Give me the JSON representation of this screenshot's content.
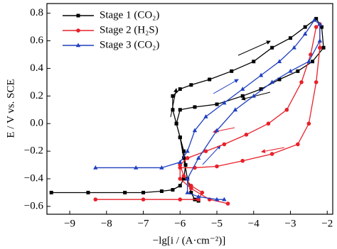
{
  "chart_data": {
    "type": "line",
    "xlabel": "−lg[i / (A·cm⁻²)]",
    "ylabel": "E / V vs. SCE",
    "xlim": [
      -9.62,
      -1.85
    ],
    "ylim": [
      -0.657,
      0.87
    ],
    "xticks": [
      {
        "value": -9,
        "label": "−9"
      },
      {
        "value": -8,
        "label": "−8"
      },
      {
        "value": -7,
        "label": "−7"
      },
      {
        "value": -6,
        "label": "−6"
      },
      {
        "value": -5,
        "label": "−5"
      },
      {
        "value": -4,
        "label": "−4"
      },
      {
        "value": -3,
        "label": "−3"
      },
      {
        "value": -2,
        "label": "−2"
      }
    ],
    "yticks": [
      {
        "value": -0.6,
        "label": "−0.6"
      },
      {
        "value": -0.4,
        "label": "−0.4"
      },
      {
        "value": -0.2,
        "label": "−0.2"
      },
      {
        "value": 0,
        "label": "0.0"
      },
      0.2,
      0.4,
      0.6,
      0.8
    ],
    "legend": "upper left",
    "series": [
      {
        "name": "Stage 1 (CO₂)",
        "color": "#000000",
        "marker": "square",
        "x": [
          -9.5,
          -8.5,
          -7.5,
          -7.0,
          -6.5,
          -6.2,
          -6.0,
          -5.9,
          -5.85,
          -5.9,
          -6.0,
          -6.1,
          -6.2,
          -6.2,
          -6.0,
          -5.7,
          -5.2,
          -4.6,
          -4.0,
          -3.5,
          -3.0,
          -2.6,
          -2.3,
          -2.15,
          -2.1,
          -2.4,
          -2.8,
          -3.3,
          -3.8,
          -4.3,
          -5.0,
          -5.6,
          -6.0,
          -6.1,
          -6.0,
          -5.9,
          -5.8,
          -5.7,
          -5.6,
          -5.5
        ],
        "values": [
          -0.5,
          -0.5,
          -0.5,
          -0.5,
          -0.49,
          -0.48,
          -0.45,
          -0.4,
          -0.3,
          -0.2,
          -0.1,
          0.0,
          0.1,
          0.2,
          0.25,
          0.28,
          0.32,
          0.38,
          0.45,
          0.55,
          0.62,
          0.7,
          0.76,
          0.7,
          0.55,
          0.45,
          0.38,
          0.32,
          0.25,
          0.2,
          0.14,
          0.12,
          0.1,
          0.0,
          -0.1,
          -0.25,
          -0.4,
          -0.5,
          -0.55,
          -0.56
        ]
      },
      {
        "name": "Stage 2 (H₂S)",
        "color": "#e8202a",
        "marker": "circle",
        "x": [
          -8.3,
          -7.0,
          -6.0,
          -5.5,
          -5.4,
          -5.7,
          -5.9,
          -6.0,
          -5.8,
          -5.3,
          -4.8,
          -4.2,
          -3.6,
          -3.1,
          -2.7,
          -2.45,
          -2.3,
          -2.2,
          -2.2,
          -2.3,
          -2.5,
          -2.8,
          -3.5,
          -4.3,
          -5.0,
          -5.6,
          -6.0,
          -6.0,
          -5.7,
          -5.2,
          -4.7
        ],
        "values": [
          -0.55,
          -0.55,
          -0.55,
          -0.55,
          -0.5,
          -0.45,
          -0.38,
          -0.3,
          -0.25,
          -0.2,
          -0.15,
          -0.08,
          0.0,
          0.1,
          0.3,
          0.5,
          0.7,
          0.72,
          0.55,
          0.3,
          0.0,
          -0.15,
          -0.22,
          -0.27,
          -0.31,
          -0.32,
          -0.32,
          -0.4,
          -0.47,
          -0.55,
          -0.58
        ]
      },
      {
        "name": "Stage 3 (CO₂)",
        "color": "#1f3fbf",
        "marker": "triangle",
        "x": [
          -8.3,
          -7.2,
          -6.5,
          -6.0,
          -5.8,
          -5.6,
          -5.3,
          -4.8,
          -4.3,
          -3.8,
          -3.3,
          -2.9,
          -2.6,
          -2.35,
          -2.2,
          -2.2,
          -2.5,
          -3.0,
          -3.5,
          -4.0,
          -4.5,
          -5.0,
          -5.5,
          -5.8,
          -5.8,
          -5.5,
          -5.0,
          -4.8
        ],
        "values": [
          -0.32,
          -0.32,
          -0.32,
          -0.28,
          -0.2,
          -0.05,
          0.05,
          0.15,
          0.25,
          0.35,
          0.45,
          0.55,
          0.65,
          0.75,
          0.72,
          0.6,
          0.45,
          0.38,
          0.3,
          0.2,
          0.1,
          -0.05,
          -0.25,
          -0.4,
          -0.5,
          -0.53,
          -0.55,
          -0.55
        ]
      }
    ]
  }
}
